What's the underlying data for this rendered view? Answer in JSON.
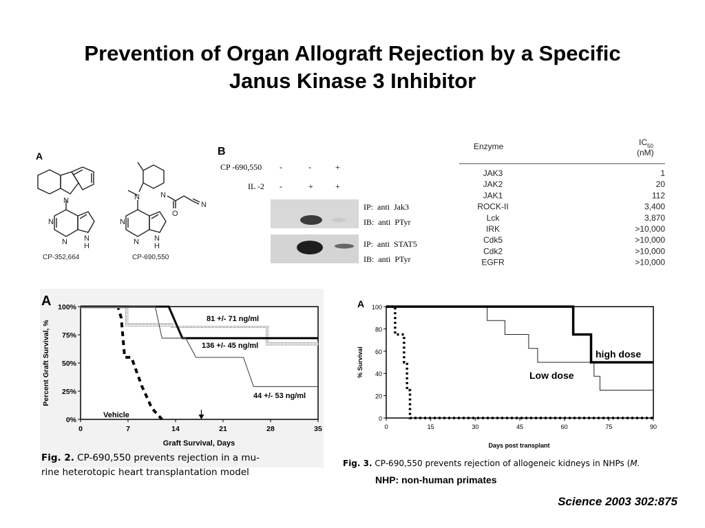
{
  "slide": {
    "title_line1": "Prevention of Organ Allograft Rejection by a Specific",
    "title_line2": "Janus Kinase 3 Inhibitor",
    "citation": "Science 2003 302:875"
  },
  "panel_a": {
    "label": "A",
    "compound1": "CP-352,664",
    "compound2": "CP-690,550",
    "atoms": [
      "N",
      "N",
      "N",
      "H",
      "N",
      "N",
      "N",
      "H",
      "N",
      "N",
      "O",
      "N"
    ]
  },
  "panel_b": {
    "label": "B",
    "rows": [
      {
        "label": "CP -690,550",
        "values": [
          "-",
          "-",
          "+"
        ]
      },
      {
        "label": "IL -2",
        "values": [
          "-",
          "+",
          "+"
        ]
      }
    ],
    "blots": [
      {
        "ip": "IP:  anti  Jak3",
        "ib": "IB:  anti  PTyr"
      },
      {
        "ip": "IP:  anti  STAT5",
        "ib": "IB:  anti  PTyr"
      }
    ]
  },
  "enzyme_table": {
    "header_enzyme": "Enzyme",
    "header_ic": "IC",
    "header_ic_sub": "50",
    "header_unit": "(nM)",
    "rows": [
      {
        "enzyme": "JAK3",
        "ic50": "1"
      },
      {
        "enzyme": "JAK2",
        "ic50": "20"
      },
      {
        "enzyme": "JAK1",
        "ic50": "112"
      },
      {
        "enzyme": "ROCK-II",
        "ic50": "3,400"
      },
      {
        "enzyme": "Lck",
        "ic50": "3,870"
      },
      {
        "enzyme": "IRK",
        "ic50": ">10,000"
      },
      {
        "enzyme": "Cdk5",
        "ic50": ">10,000"
      },
      {
        "enzyme": "Cdk2",
        "ic50": ">10,000"
      },
      {
        "enzyme": "EGFR",
        "ic50": ">10,000"
      }
    ]
  },
  "figure2": {
    "caption_label": "Fig. 2.",
    "caption_line1": "CP-690,550 prevents rejection in a mu-",
    "caption_line2": "rine heterotopic heart transplantation model"
  },
  "figure3": {
    "caption_label": "Fig. 3.",
    "caption_text": "CP-690,550 prevents rejection of allogeneic kidneys in NHPs (",
    "caption_italic": "M.",
    "note": "NHP: non-human primates"
  },
  "chart_data": [
    {
      "type": "line",
      "panel_label": "A",
      "xlabel": "Graft Survival, Days",
      "ylabel": "Percent Graft Survival, %",
      "xlim": [
        0,
        35
      ],
      "ylim": [
        0,
        100
      ],
      "xticks": [
        0,
        7,
        14,
        21,
        28,
        35
      ],
      "yticks": [
        {
          "value": 0,
          "label": "0%"
        },
        {
          "value": 25,
          "label": "25%"
        },
        {
          "value": 50,
          "label": "50%"
        },
        {
          "value": 75,
          "label": "75%"
        },
        {
          "value": 100,
          "label": "100%"
        }
      ],
      "arrow_day": 17.8,
      "series": [
        {
          "name": "Vehicle",
          "style": "dashed-thick",
          "points": [
            [
              0,
              100
            ],
            [
              5.5,
              100
            ],
            [
              6,
              90
            ],
            [
              6.5,
              55
            ],
            [
              7.5,
              55
            ],
            [
              9,
              30
            ],
            [
              10.5,
              10
            ],
            [
              12,
              0
            ]
          ]
        },
        {
          "name": "81 +/- 71 ng/ml",
          "style": "dotted-gray",
          "points": [
            [
              0,
              100
            ],
            [
              6.8,
              100
            ],
            [
              6.8,
              84
            ],
            [
              13.5,
              84
            ],
            [
              13.5,
              82
            ],
            [
              27.5,
              82
            ],
            [
              27.5,
              67
            ],
            [
              35,
              67
            ]
          ]
        },
        {
          "name": "136 +/- 45 ng/ml",
          "style": "solid-thick",
          "points": [
            [
              0,
              100
            ],
            [
              13,
              100
            ],
            [
              15,
              72
            ],
            [
              27.5,
              72
            ],
            [
              27.5,
              72
            ],
            [
              35,
              72
            ]
          ]
        },
        {
          "name": "44 +/- 53 ng/ml",
          "style": "solid-thin",
          "points": [
            [
              0,
              100
            ],
            [
              11,
              100
            ],
            [
              12,
              72
            ],
            [
              15.5,
              72
            ],
            [
              17,
              55
            ],
            [
              24,
              55
            ],
            [
              25.5,
              29
            ],
            [
              35,
              29
            ]
          ]
        }
      ]
    },
    {
      "type": "line",
      "panel_label": "A",
      "xlabel": "Days post transplant",
      "ylabel": "% Survival",
      "xlim": [
        0,
        90
      ],
      "ylim": [
        0,
        100
      ],
      "xticks": [
        0,
        15,
        30,
        45,
        60,
        75,
        90
      ],
      "yticks": [
        0,
        20,
        40,
        60,
        80,
        100
      ],
      "series": [
        {
          "name": "",
          "style": "dotted-thick",
          "points": [
            [
              0,
              100
            ],
            [
              3,
              100
            ],
            [
              3,
              75
            ],
            [
              6,
              75
            ],
            [
              6,
              50
            ],
            [
              7,
              50
            ],
            [
              7,
              25
            ],
            [
              8,
              25
            ],
            [
              8,
              0
            ],
            [
              90,
              0
            ]
          ]
        },
        {
          "name": "Low dose",
          "style": "solid-thin",
          "points": [
            [
              0,
              100
            ],
            [
              34,
              100
            ],
            [
              34,
              87.5
            ],
            [
              40,
              87.5
            ],
            [
              40,
              75
            ],
            [
              48,
              75
            ],
            [
              48,
              62.5
            ],
            [
              51,
              62.5
            ],
            [
              51,
              50
            ],
            [
              70,
              50
            ],
            [
              70,
              37.5
            ],
            [
              72,
              37.5
            ],
            [
              72,
              25
            ],
            [
              90,
              25
            ]
          ]
        },
        {
          "name": "high dose",
          "style": "solid-thick",
          "points": [
            [
              0,
              100
            ],
            [
              63,
              100
            ],
            [
              63,
              75
            ],
            [
              69,
              75
            ],
            [
              69,
              50
            ],
            [
              90,
              50
            ]
          ]
        }
      ]
    }
  ]
}
